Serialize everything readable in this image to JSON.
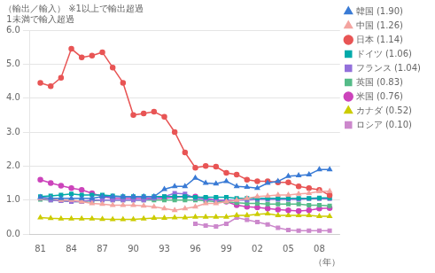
{
  "chart_data": {
    "type": "line",
    "ylabel": [
      "（輸出／輸入） ※1以上で輸出超過",
      " 1未満で輸入超過"
    ],
    "xlabel": "（年）",
    "xlim": [
      80,
      110
    ],
    "xticks": [
      81,
      84,
      87,
      90,
      93,
      96,
      99,
      {
        "value": 102,
        "label": "02"
      },
      {
        "value": 105,
        "label": "05"
      },
      {
        "value": 108,
        "label": "08"
      }
    ],
    "ylim": [
      0.0,
      6.0
    ],
    "yticks": [
      {
        "value": 0.0,
        "label": "0.0"
      },
      {
        "value": 1.0,
        "label": "1.0"
      },
      {
        "value": 2.0,
        "label": "2.0"
      },
      {
        "value": 3.0,
        "label": "3.0"
      },
      {
        "value": 4.0,
        "label": "4.0"
      },
      {
        "value": 5.0,
        "label": "5.0"
      },
      {
        "value": 6.0,
        "label": "6.0"
      }
    ],
    "grid": "y",
    "legend": "upper right",
    "series": [
      {
        "name": "韓国 (1.90)",
        "color": "#3a7bd5",
        "marker": "triangle",
        "x": [
          81,
          82,
          83,
          84,
          85,
          86,
          87,
          88,
          89,
          90,
          91,
          92,
          93,
          94,
          95,
          96,
          97,
          98,
          99,
          100,
          101,
          102,
          103,
          104,
          105,
          106,
          107,
          108,
          109
        ],
        "values": [
          1.08,
          1.05,
          1.05,
          1.05,
          1.05,
          1.05,
          1.1,
          1.1,
          1.1,
          1.1,
          1.1,
          1.1,
          1.32,
          1.4,
          1.4,
          1.65,
          1.5,
          1.48,
          1.55,
          1.4,
          1.38,
          1.35,
          1.5,
          1.55,
          1.7,
          1.72,
          1.75,
          1.9,
          1.9
        ]
      },
      {
        "name": "中国 (1.26)",
        "color": "#f4a4a0",
        "marker": "triangle",
        "x": [
          81,
          82,
          83,
          84,
          85,
          86,
          87,
          88,
          89,
          90,
          91,
          92,
          93,
          94,
          95,
          96,
          97,
          98,
          99,
          100,
          101,
          102,
          103,
          104,
          105,
          106,
          107,
          108,
          109
        ],
        "values": [
          1.05,
          1.05,
          1.0,
          1.0,
          0.95,
          0.9,
          0.88,
          0.85,
          0.85,
          0.85,
          0.83,
          0.8,
          0.75,
          0.7,
          0.75,
          0.8,
          0.9,
          0.9,
          0.95,
          1.0,
          1.05,
          1.1,
          1.12,
          1.15,
          1.15,
          1.18,
          1.2,
          1.25,
          1.26
        ]
      },
      {
        "name": "日本 (1.14)",
        "color": "#e85555",
        "marker": "circle",
        "x": [
          81,
          82,
          83,
          84,
          85,
          86,
          87,
          88,
          89,
          90,
          91,
          92,
          93,
          94,
          95,
          96,
          97,
          98,
          99,
          100,
          101,
          102,
          103,
          104,
          105,
          106,
          107,
          108,
          109
        ],
        "values": [
          4.45,
          4.35,
          4.6,
          5.45,
          5.2,
          5.25,
          5.35,
          4.9,
          4.45,
          3.5,
          3.55,
          3.6,
          3.45,
          3.0,
          2.4,
          1.95,
          2.0,
          1.98,
          1.8,
          1.75,
          1.6,
          1.55,
          1.55,
          1.52,
          1.52,
          1.4,
          1.35,
          1.3,
          1.14
        ]
      },
      {
        "name": "ドイツ (1.06)",
        "color": "#00aaaa",
        "marker": "square",
        "x": [
          81,
          82,
          83,
          84,
          85,
          86,
          87,
          88,
          89,
          90,
          91,
          92,
          93,
          94,
          95,
          96,
          97,
          98,
          99,
          100,
          101,
          102,
          103,
          104,
          105,
          106,
          107,
          108,
          109
        ],
        "values": [
          1.1,
          1.12,
          1.15,
          1.18,
          1.15,
          1.15,
          1.15,
          1.12,
          1.1,
          1.1,
          1.1,
          1.1,
          1.1,
          1.1,
          1.1,
          1.08,
          1.08,
          1.08,
          1.08,
          1.05,
          1.05,
          1.05,
          1.05,
          1.05,
          1.05,
          1.05,
          1.05,
          1.06,
          1.06
        ]
      },
      {
        "name": "フランス (1.04)",
        "color": "#9370db",
        "marker": "square",
        "x": [
          81,
          82,
          83,
          84,
          85,
          86,
          87,
          88,
          89,
          90,
          91,
          92,
          93,
          94,
          95,
          96,
          97,
          98,
          99,
          100,
          101,
          102,
          103,
          104,
          105,
          106,
          107,
          108,
          109
        ],
        "values": [
          1.05,
          1.0,
          0.98,
          0.95,
          0.95,
          1.0,
          1.0,
          1.0,
          1.0,
          1.0,
          1.0,
          1.05,
          1.1,
          1.2,
          1.18,
          1.05,
          1.02,
          1.0,
          1.0,
          1.0,
          1.0,
          1.02,
          1.02,
          1.02,
          1.02,
          1.02,
          1.04,
          1.04,
          1.04
        ]
      },
      {
        "name": "英国 (0.83)",
        "color": "#55bb88",
        "marker": "square",
        "x": [
          81,
          82,
          83,
          84,
          85,
          86,
          87,
          88,
          89,
          90,
          91,
          92,
          93,
          94,
          95,
          96,
          97,
          98,
          99,
          100,
          101,
          102,
          103,
          104,
          105,
          106,
          107,
          108,
          109
        ],
        "values": [
          1.02,
          1.0,
          0.98,
          0.95,
          0.95,
          0.98,
          1.0,
          1.0,
          1.0,
          1.0,
          1.0,
          1.0,
          1.0,
          1.0,
          1.0,
          1.0,
          0.98,
          0.95,
          0.95,
          0.92,
          0.9,
          0.9,
          0.88,
          0.88,
          0.88,
          0.88,
          0.85,
          0.85,
          0.83
        ]
      },
      {
        "name": "米国 (0.76)",
        "color": "#cc44bb",
        "marker": "circle",
        "x": [
          81,
          82,
          83,
          84,
          85,
          86,
          87,
          88,
          89,
          90,
          91,
          92,
          93,
          94,
          95,
          96,
          97,
          98,
          99,
          100,
          101,
          102,
          103,
          104,
          105,
          106,
          107,
          108,
          109
        ],
        "values": [
          1.6,
          1.5,
          1.42,
          1.35,
          1.3,
          1.2,
          1.1,
          1.05,
          1.05,
          1.05,
          1.05,
          1.05,
          1.05,
          1.08,
          1.1,
          1.1,
          1.05,
          1.0,
          0.95,
          0.85,
          0.8,
          0.78,
          0.75,
          0.72,
          0.7,
          0.68,
          0.7,
          0.75,
          0.76
        ]
      },
      {
        "name": "カナダ (0.52)",
        "color": "#cccc00",
        "marker": "triangle",
        "x": [
          81,
          82,
          83,
          84,
          85,
          86,
          87,
          88,
          89,
          90,
          91,
          92,
          93,
          94,
          95,
          96,
          97,
          98,
          99,
          100,
          101,
          102,
          103,
          104,
          105,
          106,
          107,
          108,
          109
        ],
        "values": [
          0.48,
          0.46,
          0.45,
          0.45,
          0.45,
          0.45,
          0.44,
          0.43,
          0.43,
          0.43,
          0.45,
          0.47,
          0.47,
          0.48,
          0.48,
          0.5,
          0.5,
          0.5,
          0.5,
          0.55,
          0.55,
          0.58,
          0.6,
          0.55,
          0.55,
          0.55,
          0.55,
          0.52,
          0.52
        ]
      },
      {
        "name": "ロシア (0.10)",
        "color": "#cc88cc",
        "marker": "square",
        "x": [
          96,
          97,
          98,
          99,
          100,
          101,
          102,
          103,
          104,
          105,
          106,
          107,
          108,
          109
        ],
        "values": [
          0.3,
          0.25,
          0.22,
          0.3,
          0.48,
          0.42,
          0.35,
          0.28,
          0.18,
          0.12,
          0.1,
          0.1,
          0.1,
          0.1
        ]
      }
    ]
  }
}
